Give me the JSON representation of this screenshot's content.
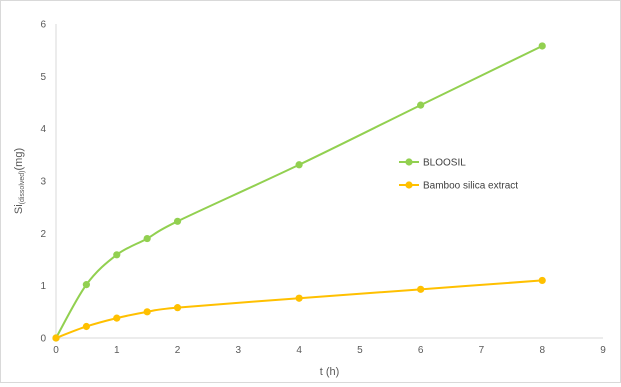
{
  "chart_data": {
    "type": "line",
    "title": "",
    "xlabel": "t (h)",
    "ylabel": {
      "main": "Si",
      "subscript": "(dissolved)",
      "unit": "(mg)"
    },
    "xlim": [
      0,
      9
    ],
    "ylim": [
      0,
      6
    ],
    "xticks": [
      0,
      1,
      2,
      3,
      4,
      5,
      6,
      7,
      8,
      9
    ],
    "yticks": [
      0,
      1,
      2,
      3,
      4,
      5,
      6
    ],
    "grid": false,
    "smooth": true,
    "legend_position": "right",
    "series": [
      {
        "name": "BLOOSIL",
        "color": "#92d050",
        "x": [
          0,
          0.5,
          1,
          1.5,
          2,
          4,
          6,
          8
        ],
        "y": [
          0,
          1.02,
          1.59,
          1.9,
          2.23,
          3.31,
          4.45,
          5.58
        ]
      },
      {
        "name": "Bamboo silica extract",
        "color": "#ffc000",
        "x": [
          0,
          0.5,
          1,
          1.5,
          2,
          4,
          6,
          8
        ],
        "y": [
          0,
          0.22,
          0.38,
          0.5,
          0.58,
          0.76,
          0.93,
          1.1
        ]
      }
    ]
  }
}
